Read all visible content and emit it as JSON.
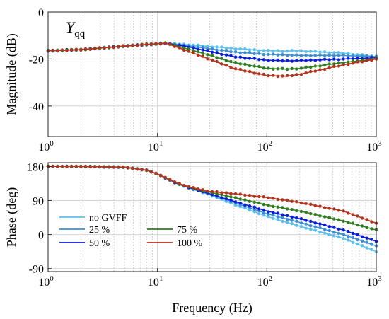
{
  "chart_data": [
    {
      "type": "line",
      "title": "Y",
      "title_subscript": "qq",
      "xlabel": "",
      "ylabel": "Magnitude (dB)",
      "xscale": "log",
      "xlim": [
        1,
        1000
      ],
      "ylim": [
        -53,
        0
      ],
      "yticks": [
        0,
        -20,
        -40
      ],
      "ytick_labels": [
        "0",
        "-20",
        "-40"
      ],
      "xtick_labels": [
        {
          "base": "10",
          "exp": "0"
        },
        {
          "base": "10",
          "exp": "1"
        },
        {
          "base": "10",
          "exp": "2"
        },
        {
          "base": "10",
          "exp": "3"
        }
      ],
      "grid": true,
      "series": [
        {
          "color": "#5bc0eb",
          "x": [
            1,
            2,
            5,
            10,
            12,
            20,
            50,
            100,
            150,
            200,
            500,
            1000
          ],
          "y": [
            -16.5,
            -16,
            -14.5,
            -13.5,
            -13.3,
            -14,
            -15.5,
            -16.5,
            -16.6,
            -16.5,
            -17.5,
            -19
          ]
        },
        {
          "color": "#3d8fd1",
          "x": [
            1,
            2,
            5,
            10,
            12,
            20,
            50,
            100,
            150,
            200,
            500,
            1000
          ],
          "y": [
            -16.5,
            -16,
            -14.5,
            -13.5,
            -13.3,
            -14.5,
            -17,
            -18,
            -18.3,
            -18.5,
            -18.5,
            -19
          ]
        },
        {
          "color": "#0a1ed8",
          "x": [
            1,
            2,
            5,
            10,
            12,
            20,
            50,
            100,
            150,
            200,
            500,
            1000
          ],
          "y": [
            -16.5,
            -16,
            -14.5,
            -13.5,
            -13.3,
            -15,
            -19,
            -20.5,
            -20.8,
            -20.7,
            -20,
            -19.5
          ]
        },
        {
          "color": "#2e7d1e",
          "x": [
            1,
            2,
            5,
            10,
            12,
            20,
            50,
            100,
            150,
            200,
            500,
            1000
          ],
          "y": [
            -16.5,
            -16,
            -14.5,
            -13.5,
            -13.3,
            -16,
            -21.5,
            -24,
            -24.3,
            -24,
            -21.5,
            -20
          ]
        },
        {
          "color": "#b5321c",
          "x": [
            1,
            2,
            5,
            10,
            12,
            20,
            50,
            100,
            150,
            200,
            500,
            1000
          ],
          "y": [
            -16.5,
            -16,
            -14.5,
            -13.5,
            -13.3,
            -17,
            -24,
            -27,
            -27.3,
            -26.5,
            -22.5,
            -20
          ]
        }
      ]
    },
    {
      "type": "line",
      "xlabel": "Frequency (Hz)",
      "ylabel": "Phase (deg)",
      "xscale": "log",
      "xlim": [
        1,
        1000
      ],
      "ylim": [
        -98,
        190
      ],
      "yticks": [
        180,
        90,
        0,
        -90
      ],
      "ytick_labels": [
        "180",
        "90",
        "0",
        "-90"
      ],
      "xtick_labels": [
        {
          "base": "10",
          "exp": "0"
        },
        {
          "base": "10",
          "exp": "1"
        },
        {
          "base": "10",
          "exp": "2"
        },
        {
          "base": "10",
          "exp": "3"
        }
      ],
      "grid": true,
      "legend": "bottom-left",
      "series": [
        {
          "name": "no GVFF",
          "color": "#5bc0eb",
          "x": [
            1,
            2,
            5,
            8,
            10,
            15,
            20,
            30,
            50,
            100,
            200,
            500,
            1000
          ],
          "y": [
            180,
            180,
            178,
            170,
            160,
            135,
            122,
            105,
            80,
            48,
            22,
            -10,
            -45
          ]
        },
        {
          "name": "25 %",
          "color": "#3d8fd1",
          "x": [
            1,
            2,
            5,
            8,
            10,
            15,
            20,
            30,
            50,
            100,
            200,
            500,
            1000
          ],
          "y": [
            180,
            180,
            178,
            170,
            160,
            135,
            122,
            107,
            85,
            55,
            32,
            0,
            -30
          ]
        },
        {
          "name": "50 %",
          "color": "#0a1ed8",
          "x": [
            1,
            2,
            5,
            8,
            10,
            15,
            20,
            30,
            50,
            100,
            200,
            500,
            1000
          ],
          "y": [
            180,
            180,
            178,
            170,
            160,
            135,
            123,
            108,
            88,
            62,
            42,
            12,
            -18
          ]
        },
        {
          "name": "75 %",
          "color": "#2e7d1e",
          "x": [
            1,
            2,
            5,
            8,
            10,
            15,
            20,
            30,
            50,
            100,
            200,
            500,
            1000
          ],
          "y": [
            180,
            180,
            178,
            170,
            160,
            136,
            124,
            112,
            98,
            78,
            62,
            36,
            12
          ]
        },
        {
          "name": "100 %",
          "color": "#b5321c",
          "x": [
            1,
            2,
            5,
            8,
            10,
            15,
            20,
            30,
            50,
            100,
            200,
            500,
            1000
          ],
          "y": [
            180,
            180,
            178,
            170,
            160,
            137,
            125,
            114,
            108,
            98,
            85,
            62,
            30
          ]
        }
      ]
    }
  ]
}
